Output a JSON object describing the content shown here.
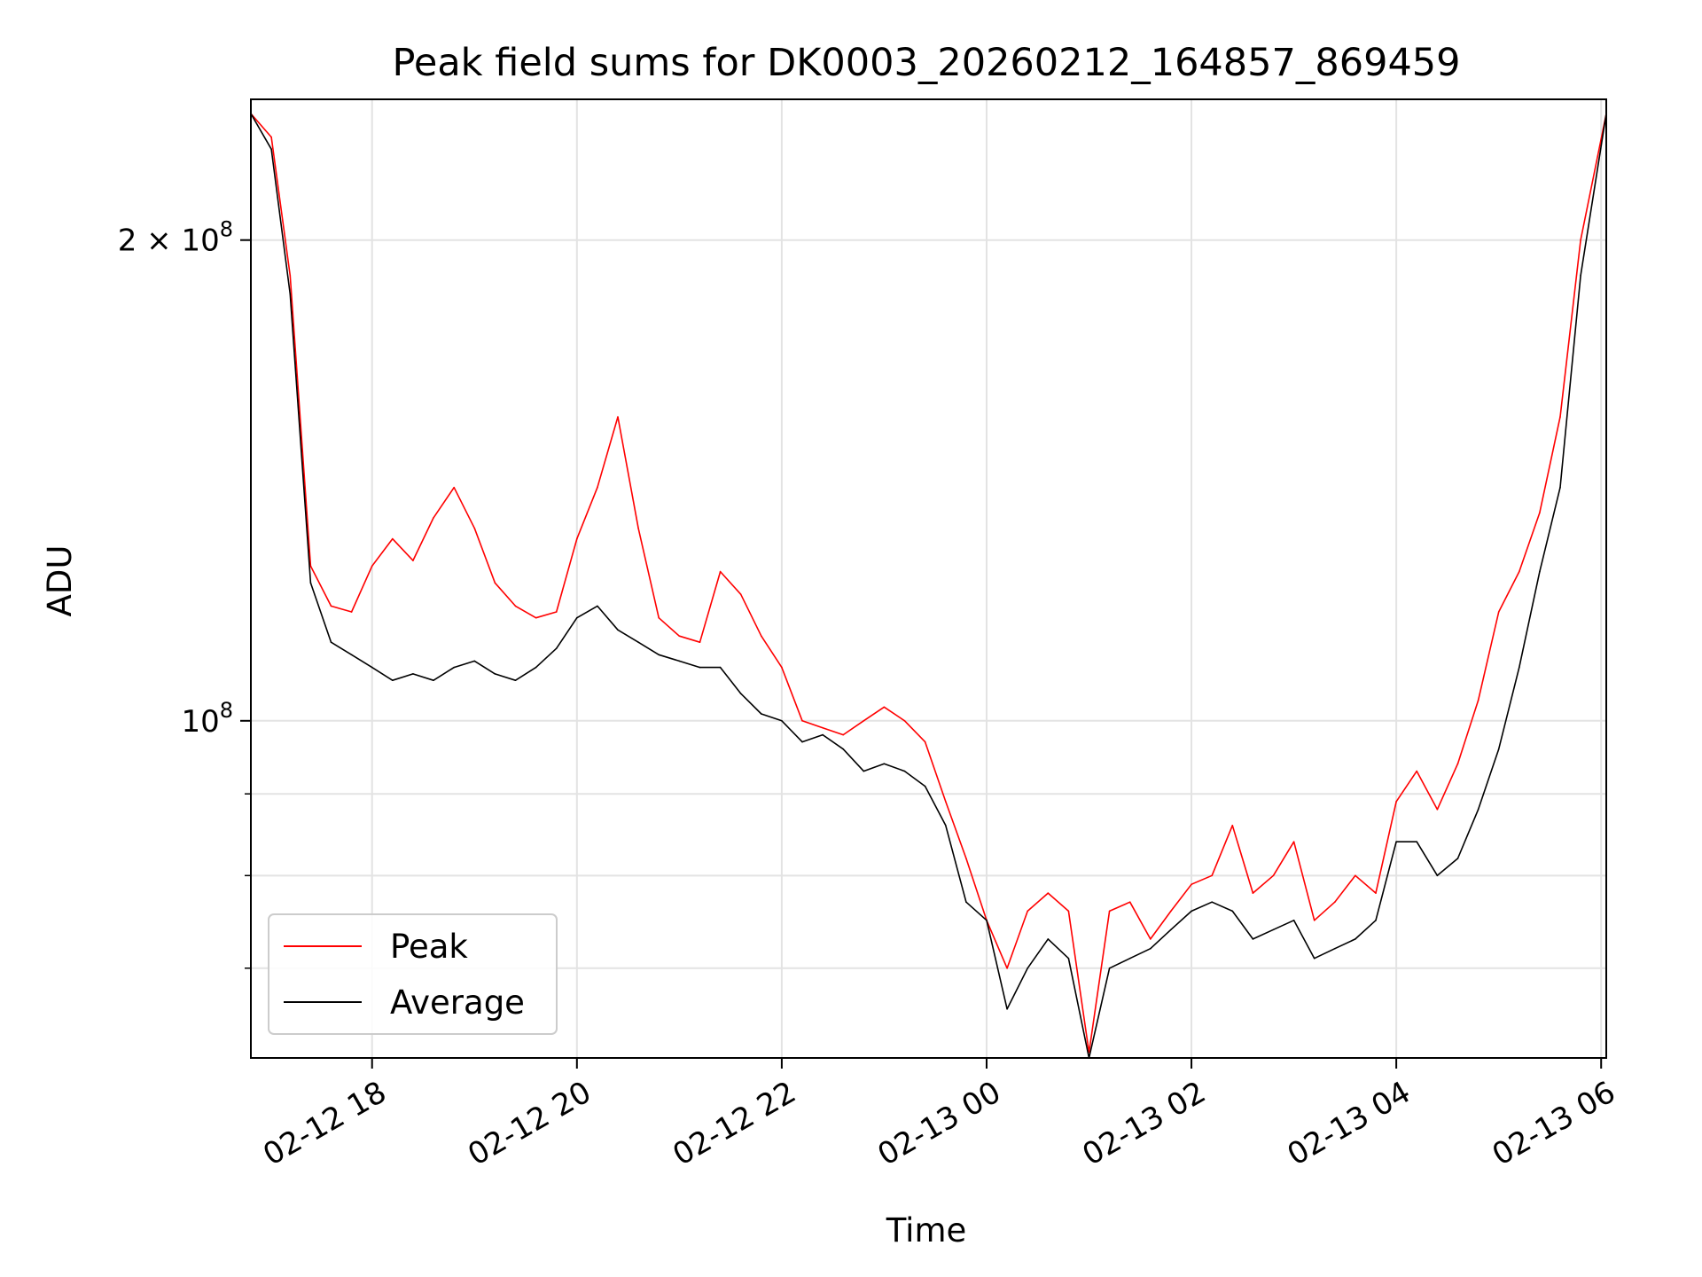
{
  "chart_data": {
    "type": "line",
    "title": "Peak field sums for DK0003_20260212_164857_869459",
    "xlabel": "Time",
    "ylabel": "ADU",
    "yscale": "log",
    "ylim": [
      61500000,
      245000000
    ],
    "xlim": [
      "2026-02-12 16:49",
      "2026-02-13 06:03"
    ],
    "x_ticks": [
      {
        "value": "2026-02-12 18:00",
        "label": "02-12 18"
      },
      {
        "value": "2026-02-12 20:00",
        "label": "02-12 20"
      },
      {
        "value": "2026-02-12 22:00",
        "label": "02-12 22"
      },
      {
        "value": "2026-02-13 00:00",
        "label": "02-13 00"
      },
      {
        "value": "2026-02-13 02:00",
        "label": "02-13 02"
      },
      {
        "value": "2026-02-13 04:00",
        "label": "02-13 04"
      },
      {
        "value": "2026-02-13 06:00",
        "label": "02-13 06"
      }
    ],
    "y_major_ticks": [
      {
        "value": 100000000,
        "mantissa": "",
        "exponent": "8"
      },
      {
        "value": 200000000,
        "mantissa": "2 × ",
        "exponent": "8"
      }
    ],
    "y_minor_ticks": [
      70000000,
      80000000,
      90000000
    ],
    "grid": true,
    "legend": {
      "placement": "lower-left",
      "entries": [
        "Peak",
        "Average"
      ]
    },
    "series": [
      {
        "name": "Peak",
        "color": "#ff0000",
        "x": [
          "2026-02-12 16:49",
          "2026-02-12 17:01",
          "2026-02-12 17:12",
          "2026-02-12 17:24",
          "2026-02-12 17:36",
          "2026-02-12 17:48",
          "2026-02-12 18:00",
          "2026-02-12 18:12",
          "2026-02-12 18:24",
          "2026-02-12 18:36",
          "2026-02-12 18:48",
          "2026-02-12 19:00",
          "2026-02-12 19:12",
          "2026-02-12 19:24",
          "2026-02-12 19:36",
          "2026-02-12 19:48",
          "2026-02-12 20:00",
          "2026-02-12 20:12",
          "2026-02-12 20:24",
          "2026-02-12 20:36",
          "2026-02-12 20:48",
          "2026-02-12 21:00",
          "2026-02-12 21:12",
          "2026-02-12 21:24",
          "2026-02-12 21:36",
          "2026-02-12 21:48",
          "2026-02-12 22:00",
          "2026-02-12 22:12",
          "2026-02-12 22:24",
          "2026-02-12 22:36",
          "2026-02-12 22:48",
          "2026-02-12 23:00",
          "2026-02-12 23:12",
          "2026-02-12 23:24",
          "2026-02-12 23:36",
          "2026-02-12 23:48",
          "2026-02-13 00:00",
          "2026-02-13 00:12",
          "2026-02-13 00:24",
          "2026-02-13 00:36",
          "2026-02-13 00:48",
          "2026-02-13 01:00",
          "2026-02-13 01:12",
          "2026-02-13 01:24",
          "2026-02-13 01:36",
          "2026-02-13 01:48",
          "2026-02-13 02:00",
          "2026-02-13 02:12",
          "2026-02-13 02:24",
          "2026-02-13 02:36",
          "2026-02-13 02:48",
          "2026-02-13 03:00",
          "2026-02-13 03:12",
          "2026-02-13 03:24",
          "2026-02-13 03:36",
          "2026-02-13 03:48",
          "2026-02-13 04:00",
          "2026-02-13 04:12",
          "2026-02-13 04:24",
          "2026-02-13 04:36",
          "2026-02-13 04:48",
          "2026-02-13 05:00",
          "2026-02-13 05:12",
          "2026-02-13 05:24",
          "2026-02-13 05:36",
          "2026-02-13 05:48",
          "2026-02-13 06:03"
        ],
        "values": [
          240000000,
          232000000,
          190000000,
          125000000,
          118000000,
          117000000,
          125000000,
          130000000,
          126000000,
          134000000,
          140000000,
          132000000,
          122000000,
          118000000,
          116000000,
          117000000,
          130000000,
          140000000,
          155000000,
          132000000,
          116000000,
          113000000,
          112000000,
          124000000,
          120000000,
          113000000,
          108000000,
          100000000,
          99000000,
          98000000,
          100000000,
          102000000,
          100000000,
          97000000,
          89000000,
          82000000,
          75000000,
          70000000,
          76000000,
          78000000,
          76000000,
          62000000,
          76000000,
          77000000,
          73000000,
          76000000,
          79000000,
          80000000,
          86000000,
          78000000,
          80000000,
          84000000,
          75000000,
          77000000,
          80000000,
          78000000,
          89000000,
          93000000,
          88000000,
          94000000,
          103000000,
          117000000,
          124000000,
          135000000,
          155000000,
          200000000,
          240000000
        ]
      },
      {
        "name": "Average",
        "color": "#000000",
        "x": [
          "2026-02-12 16:49",
          "2026-02-12 17:01",
          "2026-02-12 17:12",
          "2026-02-12 17:24",
          "2026-02-12 17:36",
          "2026-02-12 17:48",
          "2026-02-12 18:00",
          "2026-02-12 18:12",
          "2026-02-12 18:24",
          "2026-02-12 18:36",
          "2026-02-12 18:48",
          "2026-02-12 19:00",
          "2026-02-12 19:12",
          "2026-02-12 19:24",
          "2026-02-12 19:36",
          "2026-02-12 19:48",
          "2026-02-12 20:00",
          "2026-02-12 20:12",
          "2026-02-12 20:24",
          "2026-02-12 20:36",
          "2026-02-12 20:48",
          "2026-02-12 21:00",
          "2026-02-12 21:12",
          "2026-02-12 21:24",
          "2026-02-12 21:36",
          "2026-02-12 21:48",
          "2026-02-12 22:00",
          "2026-02-12 22:12",
          "2026-02-12 22:24",
          "2026-02-12 22:36",
          "2026-02-12 22:48",
          "2026-02-12 23:00",
          "2026-02-12 23:12",
          "2026-02-12 23:24",
          "2026-02-12 23:36",
          "2026-02-12 23:48",
          "2026-02-13 00:00",
          "2026-02-13 00:12",
          "2026-02-13 00:24",
          "2026-02-13 00:36",
          "2026-02-13 00:48",
          "2026-02-13 01:00",
          "2026-02-13 01:12",
          "2026-02-13 01:24",
          "2026-02-13 01:36",
          "2026-02-13 01:48",
          "2026-02-13 02:00",
          "2026-02-13 02:12",
          "2026-02-13 02:24",
          "2026-02-13 02:36",
          "2026-02-13 02:48",
          "2026-02-13 03:00",
          "2026-02-13 03:12",
          "2026-02-13 03:24",
          "2026-02-13 03:36",
          "2026-02-13 03:48",
          "2026-02-13 04:00",
          "2026-02-13 04:12",
          "2026-02-13 04:24",
          "2026-02-13 04:36",
          "2026-02-13 04:48",
          "2026-02-13 05:00",
          "2026-02-13 05:12",
          "2026-02-13 05:24",
          "2026-02-13 05:36",
          "2026-02-13 05:48",
          "2026-02-13 06:03"
        ],
        "values": [
          240000000,
          228000000,
          185000000,
          122000000,
          112000000,
          110000000,
          108000000,
          106000000,
          107000000,
          106000000,
          108000000,
          109000000,
          107000000,
          106000000,
          108000000,
          111000000,
          116000000,
          118000000,
          114000000,
          112000000,
          110000000,
          109000000,
          108000000,
          108000000,
          104000000,
          101000000,
          100000000,
          97000000,
          98000000,
          96000000,
          93000000,
          94000000,
          93000000,
          91000000,
          86000000,
          77000000,
          75000000,
          66000000,
          70000000,
          73000000,
          71000000,
          61500000,
          70000000,
          71000000,
          72000000,
          74000000,
          76000000,
          77000000,
          76000000,
          73000000,
          74000000,
          75000000,
          71000000,
          72000000,
          73000000,
          75000000,
          84000000,
          84000000,
          80000000,
          82000000,
          88000000,
          96000000,
          108000000,
          124000000,
          140000000,
          190000000,
          240000000
        ]
      }
    ]
  }
}
